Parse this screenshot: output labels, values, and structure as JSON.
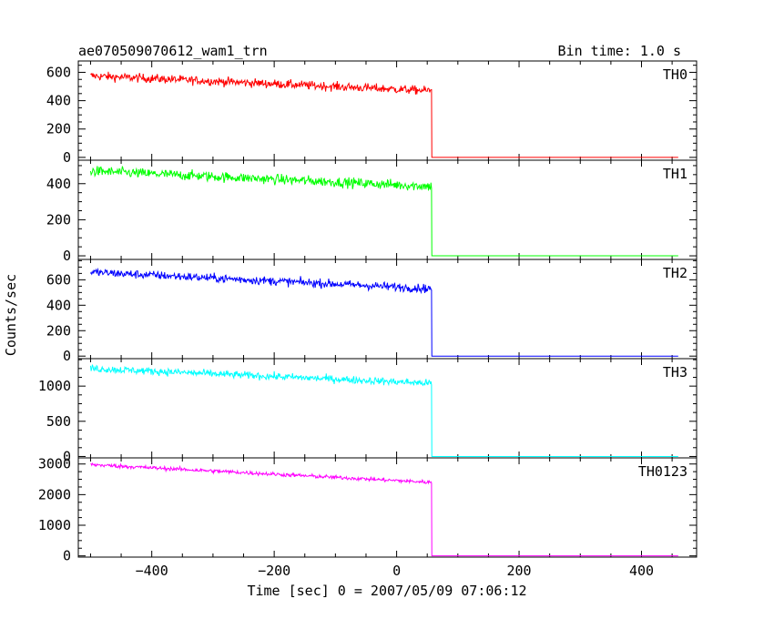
{
  "header": {
    "title": "ae070509070612_wam1_trn",
    "bin_time": "Bin time: 1.0 s"
  },
  "chart_data": {
    "type": "line",
    "title": "ae070509070612_wam1_trn",
    "subtitle": "Bin time: 1.0 s",
    "xlabel": "Time [sec] 0 = 2007/05/09 07:06:12",
    "ylabel": "Counts/sec",
    "xlim": [
      -520,
      490
    ],
    "x_ticks": [
      -400,
      -200,
      0,
      200,
      400
    ],
    "x_tick_labels": [
      "−400",
      "−200",
      "0",
      "200",
      "400"
    ],
    "data_x_range": [
      -500,
      460
    ],
    "step_time": 57,
    "grid": false,
    "legend": "none",
    "series": [
      {
        "name": "TH0",
        "color": "#ff0000",
        "ylim": [
          -20,
          680
        ],
        "y_ticks": [
          0,
          200,
          400,
          600
        ],
        "y_tick_labels": [
          "0",
          "200",
          "400",
          "600"
        ],
        "level_start": 575,
        "level_end": 470,
        "noise": 22,
        "level_after": 0,
        "points": [
          [
            -500,
            575
          ],
          [
            -400,
            560
          ],
          [
            -300,
            540
          ],
          [
            -200,
            520
          ],
          [
            -100,
            500
          ],
          [
            0,
            480
          ],
          [
            57,
            470
          ],
          [
            58,
            0
          ],
          [
            460,
            0
          ]
        ]
      },
      {
        "name": "TH1",
        "color": "#00ff00",
        "ylim": [
          -20,
          530
        ],
        "y_ticks": [
          0,
          200,
          400
        ],
        "y_tick_labels": [
          "0",
          "200",
          "400"
        ],
        "level_start": 470,
        "level_end": 385,
        "noise": 20,
        "level_after": 0,
        "points": [
          [
            -500,
            470
          ],
          [
            -400,
            455
          ],
          [
            -300,
            440
          ],
          [
            -200,
            425
          ],
          [
            -100,
            410
          ],
          [
            0,
            395
          ],
          [
            57,
            385
          ],
          [
            58,
            0
          ],
          [
            460,
            0
          ]
        ]
      },
      {
        "name": "TH2",
        "color": "#0000ff",
        "ylim": [
          -20,
          760
        ],
        "y_ticks": [
          0,
          200,
          400,
          600
        ],
        "y_tick_labels": [
          "0",
          "200",
          "400",
          "600"
        ],
        "level_start": 660,
        "level_end": 530,
        "noise": 24,
        "level_after": 0,
        "points": [
          [
            -500,
            660
          ],
          [
            -400,
            640
          ],
          [
            -300,
            615
          ],
          [
            -200,
            595
          ],
          [
            -100,
            570
          ],
          [
            0,
            545
          ],
          [
            57,
            530
          ],
          [
            58,
            0
          ],
          [
            460,
            0
          ]
        ]
      },
      {
        "name": "TH3",
        "color": "#00ffff",
        "ylim": [
          -20,
          1390
        ],
        "y_ticks": [
          0,
          500,
          1000
        ],
        "y_tick_labels": [
          "0",
          "500",
          "1000"
        ],
        "level_start": 1250,
        "level_end": 1040,
        "noise": 38,
        "level_after": 0,
        "points": [
          [
            -500,
            1250
          ],
          [
            -400,
            1220
          ],
          [
            -300,
            1180
          ],
          [
            -200,
            1140
          ],
          [
            -100,
            1100
          ],
          [
            0,
            1065
          ],
          [
            57,
            1040
          ],
          [
            58,
            0
          ],
          [
            460,
            0
          ]
        ]
      },
      {
        "name": "TH0123",
        "color": "#ff00ff",
        "ylim": [
          -40,
          3200
        ],
        "y_ticks": [
          0,
          1000,
          2000,
          3000
        ],
        "y_tick_labels": [
          "0",
          "1000",
          "2000",
          "3000"
        ],
        "level_start": 2980,
        "level_end": 2400,
        "noise": 45,
        "level_after": 0,
        "points": [
          [
            -500,
            2980
          ],
          [
            -400,
            2880
          ],
          [
            -300,
            2780
          ],
          [
            -200,
            2680
          ],
          [
            -100,
            2580
          ],
          [
            0,
            2480
          ],
          [
            57,
            2400
          ],
          [
            58,
            0
          ],
          [
            460,
            0
          ]
        ]
      }
    ]
  }
}
